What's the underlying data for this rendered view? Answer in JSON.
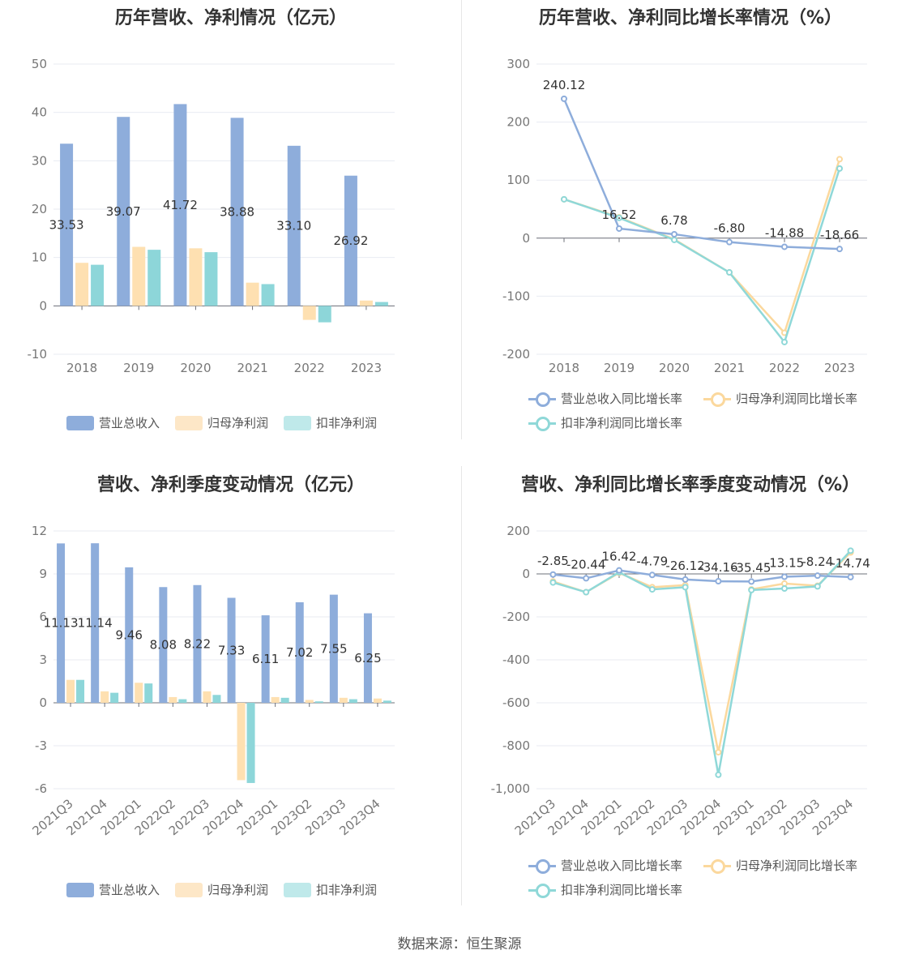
{
  "source_text": "数据来源：恒生聚源",
  "colors": {
    "revenue": "#8eaddb",
    "net_profit": "#fee0b1",
    "deducted_profit": "#8dd6d9",
    "revenue_legend_bar": "#8eaddb",
    "net_legend_bar": "#fde7c7",
    "deducted_legend_bar": "#bfe9ea",
    "revenue_line": "#8eaddb",
    "net_line": "#fbd89d",
    "deducted_line": "#8fd8d8"
  },
  "chart_data": [
    {
      "type": "bar",
      "title": "历年营收、净利情况（亿元）",
      "categories": [
        "2018",
        "2019",
        "2020",
        "2021",
        "2022",
        "2023"
      ],
      "ylim": [
        -10,
        50
      ],
      "yticks": [
        "-10",
        "0",
        "10",
        "20",
        "30",
        "40",
        "50"
      ],
      "series": [
        {
          "name": "营业总收入",
          "values": [
            33.53,
            39.07,
            41.72,
            38.88,
            33.1,
            26.92
          ],
          "labels": [
            "33.53",
            "39.07",
            "41.72",
            "38.88",
            "33.10",
            "26.92"
          ]
        },
        {
          "name": "归母净利润",
          "values": [
            8.9,
            12.2,
            11.9,
            4.8,
            -2.9,
            1.1
          ]
        },
        {
          "name": "扣非净利润",
          "values": [
            8.5,
            11.6,
            11.1,
            4.5,
            -3.4,
            0.8
          ]
        }
      ],
      "legend": "bottom",
      "grid": true
    },
    {
      "type": "line",
      "title": "历年营收、净利同比增长率情况（%）",
      "categories": [
        "2018",
        "2019",
        "2020",
        "2021",
        "2022",
        "2023"
      ],
      "ylim": [
        -200,
        300
      ],
      "yticks": [
        "-200",
        "-100",
        "0",
        "100",
        "200",
        "300"
      ],
      "series": [
        {
          "name": "营业总收入同比增长率",
          "values": [
            240.12,
            16.52,
            6.78,
            -6.8,
            -14.88,
            -18.66
          ],
          "labels": [
            "240.12",
            "16.52",
            "6.78",
            "-6.80",
            "-14.88",
            "-18.66"
          ]
        },
        {
          "name": "归母净利润同比增长率",
          "values": [
            67,
            36,
            -2,
            -59,
            -163,
            136
          ]
        },
        {
          "name": "扣非净利润同比增长率",
          "values": [
            67,
            35,
            -3,
            -59,
            -179,
            120
          ]
        }
      ],
      "legend": "bottom",
      "grid": true
    },
    {
      "type": "bar",
      "title": "营收、净利季度变动情况（亿元）",
      "categories": [
        "2021Q3",
        "2021Q4",
        "2022Q1",
        "2022Q2",
        "2022Q3",
        "2022Q4",
        "2023Q1",
        "2023Q2",
        "2023Q3",
        "2023Q4"
      ],
      "ylim": [
        -6,
        12
      ],
      "yticks": [
        "-6",
        "-3",
        "0",
        "3",
        "6",
        "9",
        "12"
      ],
      "series": [
        {
          "name": "营业总收入",
          "values": [
            11.13,
            11.14,
            9.46,
            8.08,
            8.22,
            7.33,
            6.11,
            7.02,
            7.55,
            6.25
          ],
          "labels": [
            "11.13",
            "11.14",
            "9.46",
            "8.08",
            "8.22",
            "7.33",
            "6.11",
            "7.02",
            "7.55",
            "6.25"
          ]
        },
        {
          "name": "归母净利润",
          "values": [
            1.6,
            0.8,
            1.4,
            0.4,
            0.8,
            -5.4,
            0.4,
            0.2,
            0.35,
            0.3
          ]
        },
        {
          "name": "扣非净利润",
          "values": [
            1.6,
            0.7,
            1.35,
            0.25,
            0.55,
            -5.6,
            0.35,
            0.1,
            0.25,
            0.15
          ]
        }
      ],
      "legend": "bottom",
      "grid": true
    },
    {
      "type": "line",
      "title": "营收、净利同比增长率季度变动情况（%）",
      "categories": [
        "2021Q3",
        "2021Q4",
        "2022Q1",
        "2022Q2",
        "2022Q3",
        "2022Q4",
        "2023Q1",
        "2023Q2",
        "2023Q3",
        "2023Q4"
      ],
      "ylim": [
        -1000,
        200
      ],
      "yticks": [
        "-1,000",
        "-800",
        "-600",
        "-400",
        "-200",
        "0",
        "200"
      ],
      "series": [
        {
          "name": "营业总收入同比增长率",
          "values": [
            -2.85,
            -20.44,
            16.42,
            -4.79,
            -26.12,
            -34.16,
            -35.45,
            -13.15,
            -8.24,
            -14.74
          ],
          "labels": [
            "-2.85",
            "-20.44",
            "16.42",
            "-4.79",
            "-26.12",
            "-34.16",
            "-35.45",
            "-13.15",
            "-8.24",
            "-14.74"
          ]
        },
        {
          "name": "归母净利润同比增长率",
          "values": [
            -35,
            -85,
            5,
            -62,
            -52,
            -830,
            -72,
            -45,
            -55,
            100
          ]
        },
        {
          "name": "扣非净利润同比增长率",
          "values": [
            -40,
            -85,
            8,
            -72,
            -62,
            -935,
            -75,
            -68,
            -58,
            108
          ]
        }
      ],
      "legend": "bottom",
      "grid": true
    }
  ]
}
